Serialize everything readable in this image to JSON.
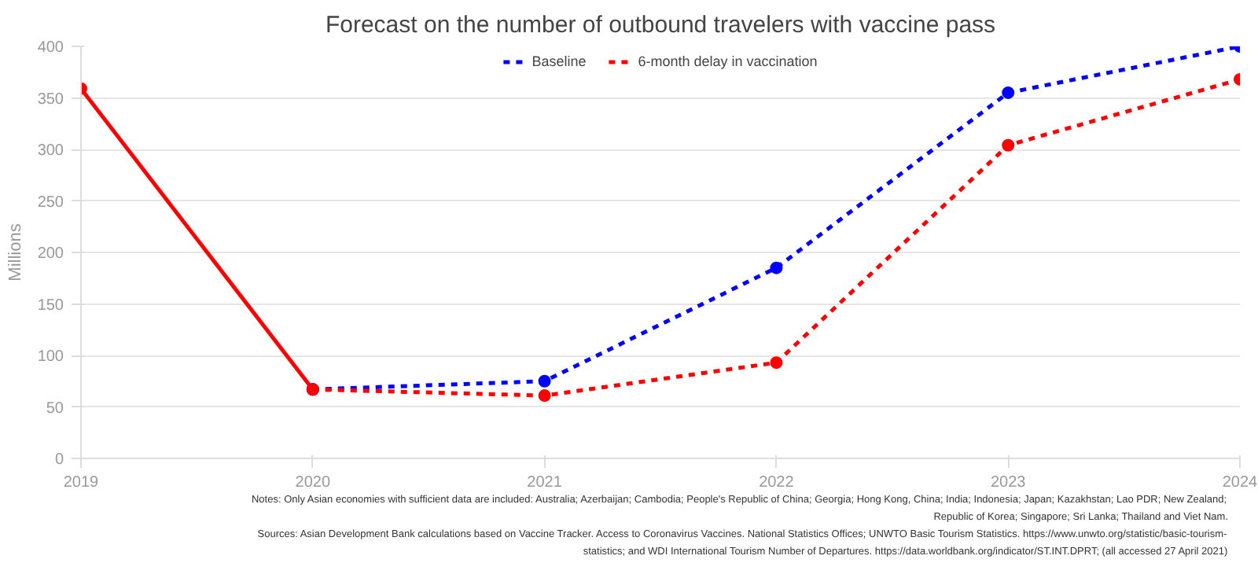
{
  "chart_data": {
    "type": "line",
    "title": "Forecast on the number of outbound travelers with vaccine pass",
    "ylabel": "Millions",
    "series": [
      {
        "color": "#ff0000",
        "line_style": "solid",
        "x": [
          2019,
          2020
        ],
        "values": [
          359,
          67
        ]
      },
      {
        "name": "Baseline",
        "color": "#0000ff",
        "line_style": "dashed",
        "x": [
          2020,
          2021,
          2022,
          2023,
          2024
        ],
        "values": [
          67,
          75,
          185,
          355,
          400
        ]
      },
      {
        "name": "6-month delay in vaccination",
        "color": "#ff0000",
        "line_style": "dashed",
        "x": [
          2020,
          2021,
          2022,
          2023,
          2024
        ],
        "values": [
          67,
          61,
          93,
          304,
          368
        ]
      }
    ],
    "xlim": [
      2019,
      2024
    ],
    "xticks": [
      2019,
      2020,
      2021,
      2022,
      2023,
      2024
    ],
    "ylim": [
      0,
      400
    ],
    "yticks": [
      0,
      50,
      100,
      150,
      200,
      250,
      300,
      350,
      400
    ],
    "grid": "y",
    "legend": "top",
    "marker": "circle",
    "annotations": [
      "Notes: Only Asian economies with sufficient data are included: Australia; Azerbaijan; Cambodia; People's Republic of China; Georgia; Hong Kong, China; India; Indonesia; Japan; Kazakhstan; Lao PDR; New Zealand; Republic of Korea; Singapore; Sri Lanka; Thailand and Viet Nam.",
      "Sources: Asian Development Bank calculations based on Vaccine Tracker. Access to Coronavirus Vaccines. National Statistics Offices; UNWTO Basic Tourism Statistics. https://www.unwto.org/statistic/basic-tourism-statistics; and WDI International Tourism Number of Departures. https://data.worldbank.org/indicator/ST.INT.DPRT; (all accessed 27 April 2021)"
    ]
  }
}
